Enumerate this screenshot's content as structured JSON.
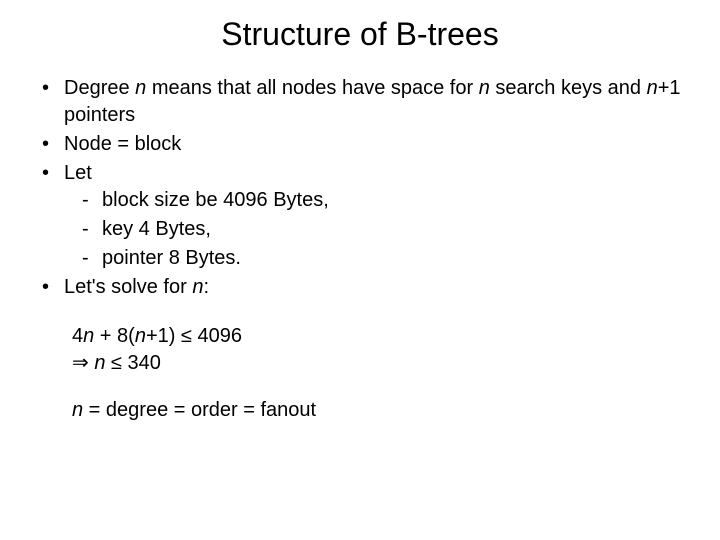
{
  "slide": {
    "title": "Structure of B-trees",
    "title_color": "#000000",
    "title_fontsize": 32,
    "body_color": "#000000",
    "body_fontsize": 20,
    "background_color": "#ffffff",
    "bullets": [
      {
        "prefix": "Degree ",
        "var1": "n",
        "mid1": " means that all nodes have space for ",
        "var2": "n",
        "mid2": " search keys and ",
        "var3": "n",
        "suffix": "+1 pointers"
      },
      {
        "text": "Node = block"
      },
      {
        "text": "Let"
      },
      {
        "text_prefix": "Let's solve for ",
        "var": "n",
        "text_suffix": ":"
      }
    ],
    "sub_bullets": [
      {
        "text": "block size be 4096 Bytes,"
      },
      {
        "text": "key 4 Bytes,"
      },
      {
        "text": "pointer 8 Bytes."
      }
    ],
    "math": {
      "line1_a": "4",
      "line1_var1": "n",
      "line1_b": " + 8(",
      "line1_var2": "n",
      "line1_c": "+1) ",
      "line1_op": "≤",
      "line1_rhs": " 4096",
      "line2_arrow": "⇒",
      "line2_sp": "  ",
      "line2_var": "n",
      "line2_op": " ≤ ",
      "line2_rhs": "340"
    },
    "final": {
      "var": "n",
      "text": " = degree = order = fanout"
    }
  }
}
